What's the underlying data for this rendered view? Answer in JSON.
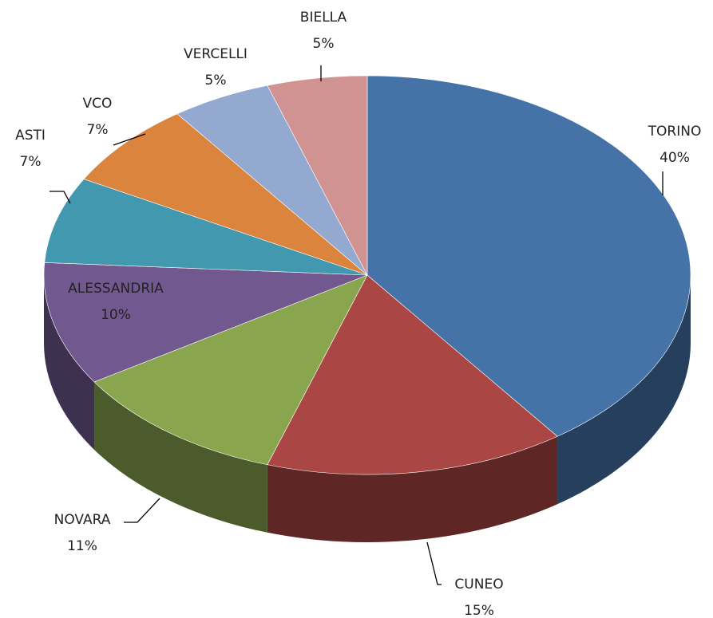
{
  "chart_data": {
    "type": "pie",
    "categories": [
      "TORINO",
      "CUNEO",
      "NOVARA",
      "ALESSANDRIA",
      "ASTI",
      "VCO",
      "VERCELLI",
      "BIELLA"
    ],
    "values": [
      40,
      15,
      11,
      10,
      7,
      7,
      5,
      5
    ],
    "value_labels": [
      "40%",
      "15%",
      "11%",
      "10%",
      "7%",
      "7%",
      "5%",
      "5%"
    ],
    "colors": [
      "#4572a7",
      "#aa4643",
      "#89a54e",
      "#71588f",
      "#4198af",
      "#db843d",
      "#93a9cf",
      "#d19392"
    ]
  }
}
